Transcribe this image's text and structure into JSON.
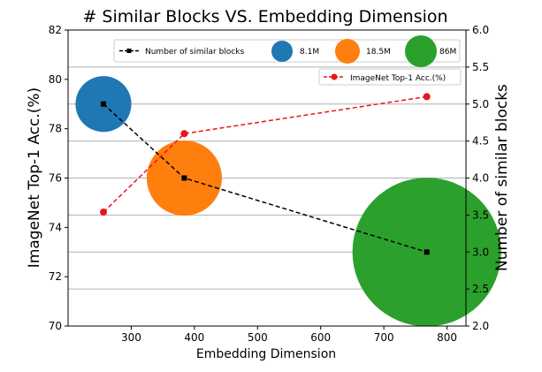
{
  "chart_data": {
    "type": "scatter",
    "title": "# Similar Blocks VS. Embedding Dimension",
    "xlabel": "Embedding Dimension",
    "ylabel_left": "ImageNet Top-1 Acc.(%)",
    "ylabel_right": "Number of similar blocks",
    "xlim": [
      200,
      830
    ],
    "ylim_left": [
      70,
      82
    ],
    "ylim_right": [
      2.0,
      6.0
    ],
    "x_ticks": [
      300,
      400,
      500,
      600,
      700,
      800
    ],
    "y_ticks_left": [
      70,
      72,
      74,
      76,
      78,
      80,
      82
    ],
    "y_ticks_right": [
      2.0,
      2.5,
      3.0,
      3.5,
      4.0,
      4.5,
      5.0,
      5.5,
      6.0
    ],
    "grid": "horizontal, right axis",
    "series": [
      {
        "name": "Number of similar blocks",
        "axis": "right",
        "style": "black dashed, square markers",
        "color": "#000000",
        "x": [
          256,
          384,
          768
        ],
        "y": [
          5.0,
          4.0,
          3.0
        ]
      },
      {
        "name": "ImageNet Top-1 Acc.(%)",
        "axis": "right",
        "style": "red dashed, circle markers",
        "color": "#e8151b",
        "x": [
          256,
          384,
          768
        ],
        "y": [
          3.54,
          4.6,
          5.1
        ]
      }
    ],
    "bubbles": {
      "axis": "left",
      "x": [
        256,
        384,
        768
      ],
      "y": [
        79,
        76,
        73
      ],
      "params_m": [
        8.1,
        18.5,
        86
      ],
      "labels": [
        "8.1M",
        "18.5M",
        "86M"
      ],
      "colors": [
        "#1f77b4",
        "#ff7f0e",
        "#2ca02c"
      ]
    },
    "legend": [
      {
        "label": "Number of similar blocks",
        "kind": "line",
        "color": "#000000"
      },
      {
        "label": "8.1M",
        "kind": "bubble",
        "color": "#1f77b4"
      },
      {
        "label": "18.5M",
        "kind": "bubble",
        "color": "#ff7f0e"
      },
      {
        "label": "86M",
        "kind": "bubble",
        "color": "#2ca02c"
      },
      {
        "label": "ImageNet Top-1 Acc.(%)",
        "kind": "line",
        "color": "#e8151b"
      }
    ]
  }
}
